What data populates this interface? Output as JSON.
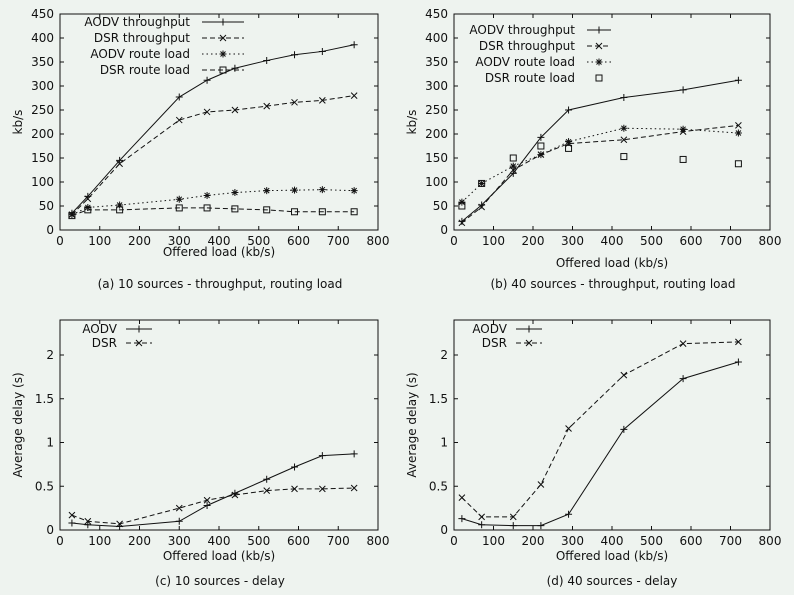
{
  "colors": {
    "background": "#eef3ef",
    "ink": "#111111"
  },
  "chart_data": [
    {
      "id": "a",
      "type": "line",
      "caption": "(a) 10 sources - throughput, routing load",
      "xlabel": "Offered load (kb/s)",
      "ylabel": "kb/s",
      "xlim": [
        0,
        800
      ],
      "ylim": [
        0,
        450
      ],
      "xticks": [
        0,
        100,
        200,
        300,
        400,
        500,
        600,
        700,
        800
      ],
      "yticks": [
        0,
        50,
        100,
        150,
        200,
        250,
        300,
        350,
        400,
        450
      ],
      "series": [
        {
          "name": "AODV throughput",
          "marker": "plus",
          "dash": "solid",
          "legend_line": true,
          "x": [
            30,
            70,
            150,
            300,
            370,
            440,
            520,
            590,
            660,
            740
          ],
          "y": [
            35,
            70,
            145,
            277,
            312,
            337,
            353,
            365,
            372,
            386
          ]
        },
        {
          "name": "DSR throughput",
          "marker": "cross",
          "dash": "dashed",
          "legend_line": true,
          "x": [
            30,
            70,
            150,
            300,
            370,
            440,
            520,
            590,
            660,
            740
          ],
          "y": [
            32,
            65,
            138,
            229,
            246,
            250,
            258,
            266,
            270,
            280
          ]
        },
        {
          "name": "AODV route load",
          "marker": "star",
          "dash": "dotted",
          "legend_line": true,
          "x": [
            30,
            70,
            150,
            300,
            370,
            440,
            520,
            590,
            660,
            740
          ],
          "y": [
            32,
            47,
            52,
            64,
            72,
            78,
            82,
            83,
            84,
            82
          ]
        },
        {
          "name": "DSR route load",
          "marker": "square",
          "dash": "dashed",
          "legend_line": true,
          "x": [
            30,
            70,
            150,
            300,
            370,
            440,
            520,
            590,
            660,
            740
          ],
          "y": [
            30,
            42,
            42,
            46,
            46,
            44,
            42,
            38,
            38,
            38
          ]
        }
      ]
    },
    {
      "id": "b",
      "type": "line",
      "caption": "(b) 40 sources - throughput, routing load",
      "xlabel": "Offered load (kb/s)",
      "ylabel": "kb/s",
      "xlim": [
        0,
        800
      ],
      "ylim": [
        0,
        450
      ],
      "xticks": [
        0,
        100,
        200,
        300,
        400,
        500,
        600,
        700,
        800
      ],
      "yticks": [
        0,
        50,
        100,
        150,
        200,
        250,
        300,
        350,
        400,
        450
      ],
      "series": [
        {
          "name": "AODV throughput",
          "marker": "plus",
          "dash": "solid",
          "legend_line": true,
          "x": [
            20,
            70,
            150,
            220,
            290,
            430,
            580,
            720
          ],
          "y": [
            18,
            52,
            118,
            193,
            250,
            276,
            292,
            312
          ]
        },
        {
          "name": "DSR throughput",
          "marker": "cross",
          "dash": "dashed",
          "legend_line": true,
          "x": [
            20,
            70,
            150,
            220,
            290,
            430,
            580,
            720
          ],
          "y": [
            15,
            48,
            125,
            157,
            180,
            188,
            205,
            218
          ]
        },
        {
          "name": "AODV route load",
          "marker": "star",
          "dash": "dotted",
          "legend_line": true,
          "x": [
            20,
            70,
            150,
            220,
            290,
            430,
            580,
            720
          ],
          "y": [
            58,
            97,
            133,
            157,
            184,
            212,
            210,
            202
          ]
        },
        {
          "name": "DSR route load",
          "marker": "square",
          "dash": "none",
          "legend_line": false,
          "x": [
            20,
            70,
            150,
            220,
            290,
            430,
            580,
            720
          ],
          "y": [
            50,
            97,
            150,
            175,
            170,
            153,
            147,
            138
          ]
        }
      ]
    },
    {
      "id": "c",
      "type": "line",
      "caption": "(c) 10 sources - delay",
      "xlabel": "Offered load (kb/s)",
      "ylabel": "Average delay (s)",
      "xlim": [
        0,
        800
      ],
      "ylim": [
        0,
        2.4
      ],
      "xticks": [
        0,
        100,
        200,
        300,
        400,
        500,
        600,
        700,
        800
      ],
      "yticks": [
        0,
        0.5,
        1,
        1.5,
        2
      ],
      "ytick_labels": [
        "0",
        "0.5",
        "1",
        "1.5",
        "2"
      ],
      "series": [
        {
          "name": "AODV",
          "marker": "plus",
          "dash": "solid",
          "legend_line": true,
          "x": [
            30,
            70,
            150,
            300,
            370,
            440,
            520,
            590,
            660,
            740
          ],
          "y": [
            0.08,
            0.06,
            0.04,
            0.1,
            0.28,
            0.42,
            0.58,
            0.72,
            0.85,
            0.87
          ]
        },
        {
          "name": "DSR",
          "marker": "cross",
          "dash": "dashed",
          "legend_line": true,
          "x": [
            30,
            70,
            150,
            300,
            370,
            440,
            520,
            590,
            660,
            740
          ],
          "y": [
            0.17,
            0.1,
            0.07,
            0.25,
            0.34,
            0.4,
            0.45,
            0.47,
            0.47,
            0.48
          ]
        }
      ]
    },
    {
      "id": "d",
      "type": "line",
      "caption": "(d) 40 sources - delay",
      "xlabel": "Offered load (kb/s)",
      "ylabel": "Average delay (s)",
      "xlim": [
        0,
        800
      ],
      "ylim": [
        0,
        2.4
      ],
      "xticks": [
        0,
        100,
        200,
        300,
        400,
        500,
        600,
        700,
        800
      ],
      "yticks": [
        0,
        0.5,
        1,
        1.5,
        2
      ],
      "ytick_labels": [
        "0",
        "0.5",
        "1",
        "1.5",
        "2"
      ],
      "series": [
        {
          "name": "AODV",
          "marker": "plus",
          "dash": "solid",
          "legend_line": true,
          "x": [
            20,
            70,
            150,
            220,
            290,
            430,
            580,
            720
          ],
          "y": [
            0.13,
            0.06,
            0.05,
            0.05,
            0.18,
            1.15,
            1.73,
            1.92
          ]
        },
        {
          "name": "DSR",
          "marker": "cross",
          "dash": "dashed",
          "legend_line": true,
          "x": [
            20,
            70,
            150,
            220,
            290,
            430,
            580,
            720
          ],
          "y": [
            0.37,
            0.15,
            0.15,
            0.52,
            1.16,
            1.77,
            2.13,
            2.15
          ]
        }
      ]
    }
  ]
}
